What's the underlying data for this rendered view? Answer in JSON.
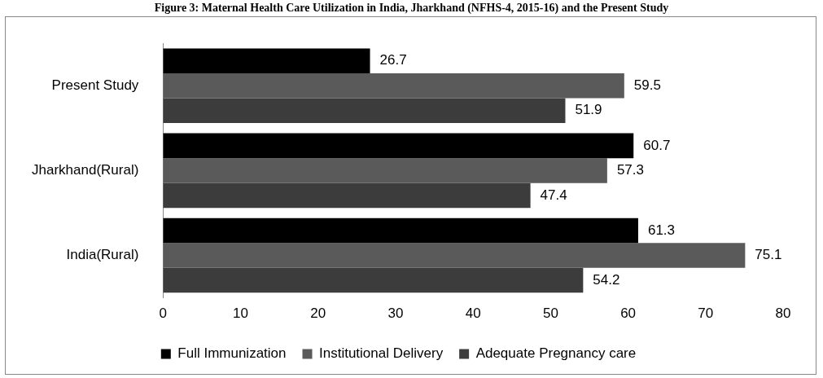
{
  "chart_data": {
    "type": "bar",
    "orientation": "horizontal",
    "title": "Figure 3: Maternal Health Care Utilization in India, Jharkhand (NFHS-4, 2015-16) and the Present Study",
    "categories": [
      "Present Study",
      "Jharkhand(Rural)",
      "India(Rural)"
    ],
    "series": [
      {
        "name": "Full Immunization",
        "color": "#000000",
        "values": [
          26.7,
          60.7,
          61.3
        ]
      },
      {
        "name": "Institutional Delivery",
        "color": "#5a5a5a",
        "values": [
          59.5,
          57.3,
          75.1
        ]
      },
      {
        "name": "Adequate Pregnancy care",
        "color": "#3c3c3c",
        "values": [
          51.9,
          47.4,
          54.2
        ]
      }
    ],
    "xlim": [
      0,
      80
    ],
    "xticks": [
      0,
      10,
      20,
      30,
      40,
      50,
      60,
      70,
      80
    ],
    "grid": false,
    "legend": "bottom",
    "data_labels": true
  }
}
